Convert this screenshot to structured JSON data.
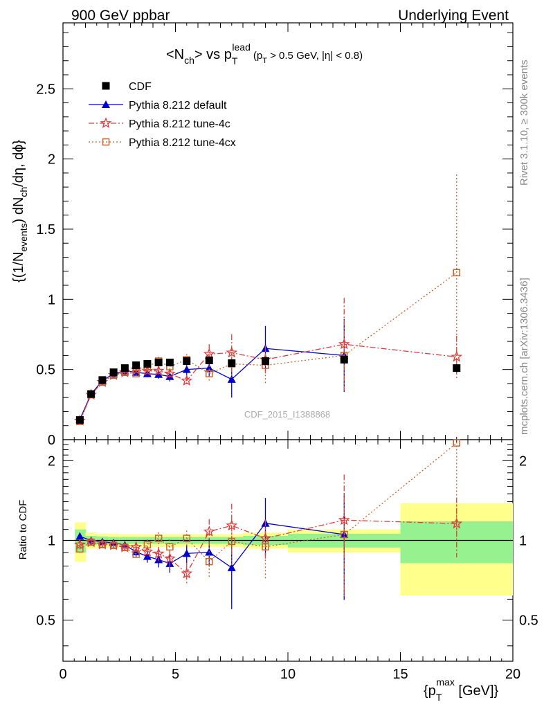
{
  "header": {
    "left": "900 GeV ppbar",
    "right": "Underlying Event"
  },
  "title": {
    "lhs": "<N",
    "lhs_sub": "ch",
    "mid": "> vs p",
    "mid_sub": "T",
    "mid_sup": "lead",
    "cuts_a": "(p",
    "cuts_sub": "T",
    "cuts_b": " > 0.5 GeV, |η| < 0.8)"
  },
  "ylabel": {
    "a": "{(1/N",
    "a_sub": "events",
    "b": ") dN",
    "b_sub": "ch",
    "c": "/dη, dϕ}"
  },
  "ratio_ylabel": "Ratio to CDF",
  "xlabel": {
    "a": "{p",
    "a_sub": "T",
    "a_sup": "max",
    "b": " [GeV]}"
  },
  "side_labels": {
    "rivet": "Rivet 3.1.10, ≥ 300k events",
    "mcplots": "mcplots.cern.ch [arXiv:1306.3436]"
  },
  "watermark": "CDF_2015_I1388868",
  "chart_data": {
    "type": "scatter",
    "xlim": [
      0,
      20
    ],
    "ylim": [
      0,
      2.97
    ],
    "ratio_ylim": [
      0.35,
      2.4
    ],
    "x_ticks": [
      "0",
      "5",
      "10",
      "15",
      "20"
    ],
    "y_ticks": [
      "0",
      "0.5",
      "1",
      "1.5",
      "2",
      "2.5"
    ],
    "ratio_y_ticks": [
      "0.5",
      "1",
      "2"
    ],
    "legend": [
      {
        "name": "CDF",
        "color": "#000000",
        "marker": "square"
      },
      {
        "name": "Pythia 8.212 default",
        "color": "#0000cc",
        "marker": "triangle"
      },
      {
        "name": "Pythia 8.212 tune-4c",
        "color": "#e23a3a",
        "marker": "star"
      },
      {
        "name": "Pythia 8.212 tune-4cx",
        "color": "#c8602a",
        "marker": "open-square"
      }
    ],
    "cdf": {
      "x": [
        0.75,
        1.25,
        1.75,
        2.25,
        2.75,
        3.25,
        3.75,
        4.25,
        4.75,
        5.5,
        6.5,
        7.5,
        9.0,
        12.5,
        17.5
      ],
      "y": [
        0.14,
        0.325,
        0.425,
        0.48,
        0.51,
        0.53,
        0.54,
        0.55,
        0.55,
        0.56,
        0.565,
        0.545,
        0.56,
        0.57,
        0.51
      ],
      "err": [
        0.0,
        0.0,
        0.0,
        0.0,
        0.0,
        0.0,
        0.0,
        0.0,
        0.0,
        0.0,
        0.0,
        0.0,
        0.0,
        0.0,
        0.03
      ]
    },
    "series": [
      {
        "name": "Pythia 8.212 default",
        "x": [
          0.75,
          1.25,
          1.75,
          2.25,
          2.75,
          3.25,
          3.75,
          4.25,
          4.75,
          5.5,
          6.5,
          7.5,
          9.0,
          12.5
        ],
        "y": [
          0.145,
          0.325,
          0.42,
          0.47,
          0.49,
          0.48,
          0.47,
          0.465,
          0.45,
          0.5,
          0.51,
          0.43,
          0.65,
          0.6
        ],
        "err": [
          0.005,
          0.008,
          0.01,
          0.012,
          0.015,
          0.02,
          0.025,
          0.03,
          0.035,
          0.04,
          0.06,
          0.13,
          0.16,
          0.26
        ]
      },
      {
        "name": "Pythia 8.212 tune-4c",
        "x": [
          0.75,
          1.25,
          1.75,
          2.25,
          2.75,
          3.25,
          3.75,
          4.25,
          4.75,
          5.5,
          6.5,
          7.5,
          9.0,
          12.5,
          17.5
        ],
        "y": [
          0.135,
          0.32,
          0.41,
          0.46,
          0.48,
          0.5,
          0.49,
          0.49,
          0.47,
          0.42,
          0.61,
          0.62,
          0.57,
          0.68,
          0.59
        ],
        "err": [
          0.005,
          0.008,
          0.01,
          0.012,
          0.015,
          0.02,
          0.025,
          0.03,
          0.035,
          0.04,
          0.07,
          0.13,
          0.1,
          0.33,
          0.15
        ]
      },
      {
        "name": "Pythia 8.212 tune-4cx",
        "x": [
          0.75,
          1.25,
          1.75,
          2.25,
          2.75,
          3.25,
          3.75,
          4.25,
          4.75,
          5.5,
          6.5,
          7.5,
          9.0,
          12.5,
          17.5
        ],
        "y": [
          0.13,
          0.32,
          0.41,
          0.46,
          0.48,
          0.47,
          0.52,
          0.56,
          0.52,
          0.57,
          0.47,
          0.54,
          0.53,
          0.6,
          1.19
        ],
        "err": [
          0.005,
          0.008,
          0.01,
          0.012,
          0.015,
          0.02,
          0.025,
          0.03,
          0.035,
          0.04,
          0.06,
          0.1,
          0.13,
          0.25,
          0.7
        ]
      }
    ],
    "ratio_bands": [
      {
        "lo": 0.5,
        "hi": 1.0,
        "stat": 0.1,
        "total": 0.17
      },
      {
        "lo": 1.0,
        "hi": 1.5,
        "stat": 0.04,
        "total": 0.07
      },
      {
        "lo": 1.5,
        "hi": 2.0,
        "stat": 0.035,
        "total": 0.06
      },
      {
        "lo": 2.0,
        "hi": 2.5,
        "stat": 0.03,
        "total": 0.06
      },
      {
        "lo": 2.5,
        "hi": 3.0,
        "stat": 0.03,
        "total": 0.055
      },
      {
        "lo": 3.0,
        "hi": 3.5,
        "stat": 0.03,
        "total": 0.055
      },
      {
        "lo": 3.5,
        "hi": 4.0,
        "stat": 0.03,
        "total": 0.055
      },
      {
        "lo": 4.0,
        "hi": 4.5,
        "stat": 0.03,
        "total": 0.055
      },
      {
        "lo": 4.5,
        "hi": 5.0,
        "stat": 0.03,
        "total": 0.055
      },
      {
        "lo": 5.0,
        "hi": 6.0,
        "stat": 0.03,
        "total": 0.055
      },
      {
        "lo": 6.0,
        "hi": 7.0,
        "stat": 0.03,
        "total": 0.055
      },
      {
        "lo": 7.0,
        "hi": 8.0,
        "stat": 0.03,
        "total": 0.055
      },
      {
        "lo": 8.0,
        "hi": 10.0,
        "stat": 0.04,
        "total": 0.07
      },
      {
        "lo": 10.0,
        "hi": 15.0,
        "stat": 0.06,
        "total": 0.1
      },
      {
        "lo": 15.0,
        "hi": 20.0,
        "stat": 0.18,
        "total": 0.38
      }
    ]
  }
}
